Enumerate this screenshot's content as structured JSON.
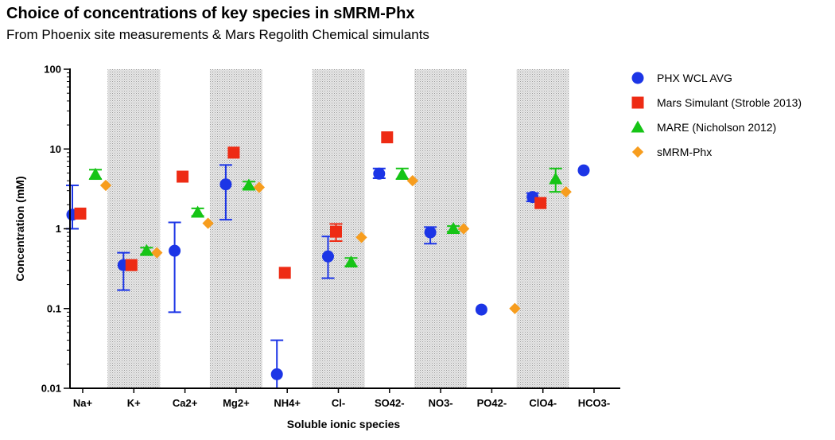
{
  "header": {
    "title": "Choice of concentrations of key species in sMRM-Phx",
    "subtitle": "From Phoenix site measurements & Mars Regolith Chemical simulants"
  },
  "chart_data": {
    "type": "scatter",
    "title": "Choice of concentrations of key species in sMRM-Phx",
    "subtitle": "From Phoenix site measurements & Mars Regolith Chemical simulants",
    "xlabel": "Soluble ionic species",
    "ylabel": "Concentration (mM)",
    "yscale": "log",
    "ylim": [
      0.01,
      100
    ],
    "yticks": [
      "0.01",
      "0.1",
      "1",
      "10",
      "100"
    ],
    "categories": [
      "Na+",
      "K+",
      "Ca2+",
      "Mg2+",
      "NH4+",
      "Cl-",
      "SO42-",
      "NO3-",
      "PO42-",
      "ClO4-",
      "HCO3-"
    ],
    "shaded_categories": [
      "K+",
      "Mg2+",
      "Cl-",
      "NO3-",
      "ClO4-"
    ],
    "legend_position": "right",
    "series": [
      {
        "name": "PHX WCL AVG",
        "marker": "circle",
        "color": "#1c35e6",
        "values": [
          1.5,
          0.35,
          0.53,
          3.6,
          0.015,
          0.45,
          4.9,
          0.9,
          0.097,
          2.5,
          5.4
        ],
        "error_low": [
          1.0,
          0.17,
          0.09,
          1.3,
          0.01,
          0.24,
          4.3,
          0.65,
          null,
          2.2,
          null
        ],
        "error_high": [
          3.5,
          0.5,
          1.2,
          6.3,
          0.04,
          0.8,
          5.7,
          1.05,
          null,
          2.8,
          null
        ]
      },
      {
        "name": "Mars Simulant (Stroble 2013)",
        "marker": "square",
        "color": "#ee2b14",
        "values": [
          1.55,
          0.35,
          4.5,
          9.0,
          0.28,
          0.92,
          14.0,
          null,
          null,
          2.1,
          null
        ],
        "error_low": [
          null,
          null,
          null,
          null,
          null,
          0.7,
          null,
          null,
          null,
          null,
          null
        ],
        "error_high": [
          null,
          null,
          null,
          null,
          null,
          1.15,
          null,
          null,
          null,
          null,
          null
        ]
      },
      {
        "name": "MARE (Nicholson 2012)",
        "marker": "triangle",
        "color": "#16c416",
        "values": [
          4.8,
          0.53,
          1.6,
          3.5,
          null,
          0.38,
          4.8,
          1.0,
          null,
          4.2,
          null
        ],
        "error_low": [
          4.2,
          0.48,
          1.45,
          3.2,
          null,
          0.34,
          4.2,
          0.92,
          null,
          2.9,
          null
        ],
        "error_high": [
          5.5,
          0.58,
          1.8,
          3.9,
          null,
          0.43,
          5.7,
          1.08,
          null,
          5.7,
          null
        ]
      },
      {
        "name": "sMRM-Phx",
        "marker": "diamond",
        "color": "#f79d1e",
        "values": [
          3.5,
          0.5,
          1.17,
          3.3,
          null,
          0.78,
          4.0,
          1.0,
          0.1,
          2.9,
          null
        ],
        "error_low": [
          null,
          null,
          null,
          null,
          null,
          null,
          null,
          null,
          null,
          null,
          null
        ],
        "error_high": [
          null,
          null,
          null,
          null,
          null,
          null,
          null,
          null,
          null,
          null,
          null
        ]
      }
    ]
  }
}
